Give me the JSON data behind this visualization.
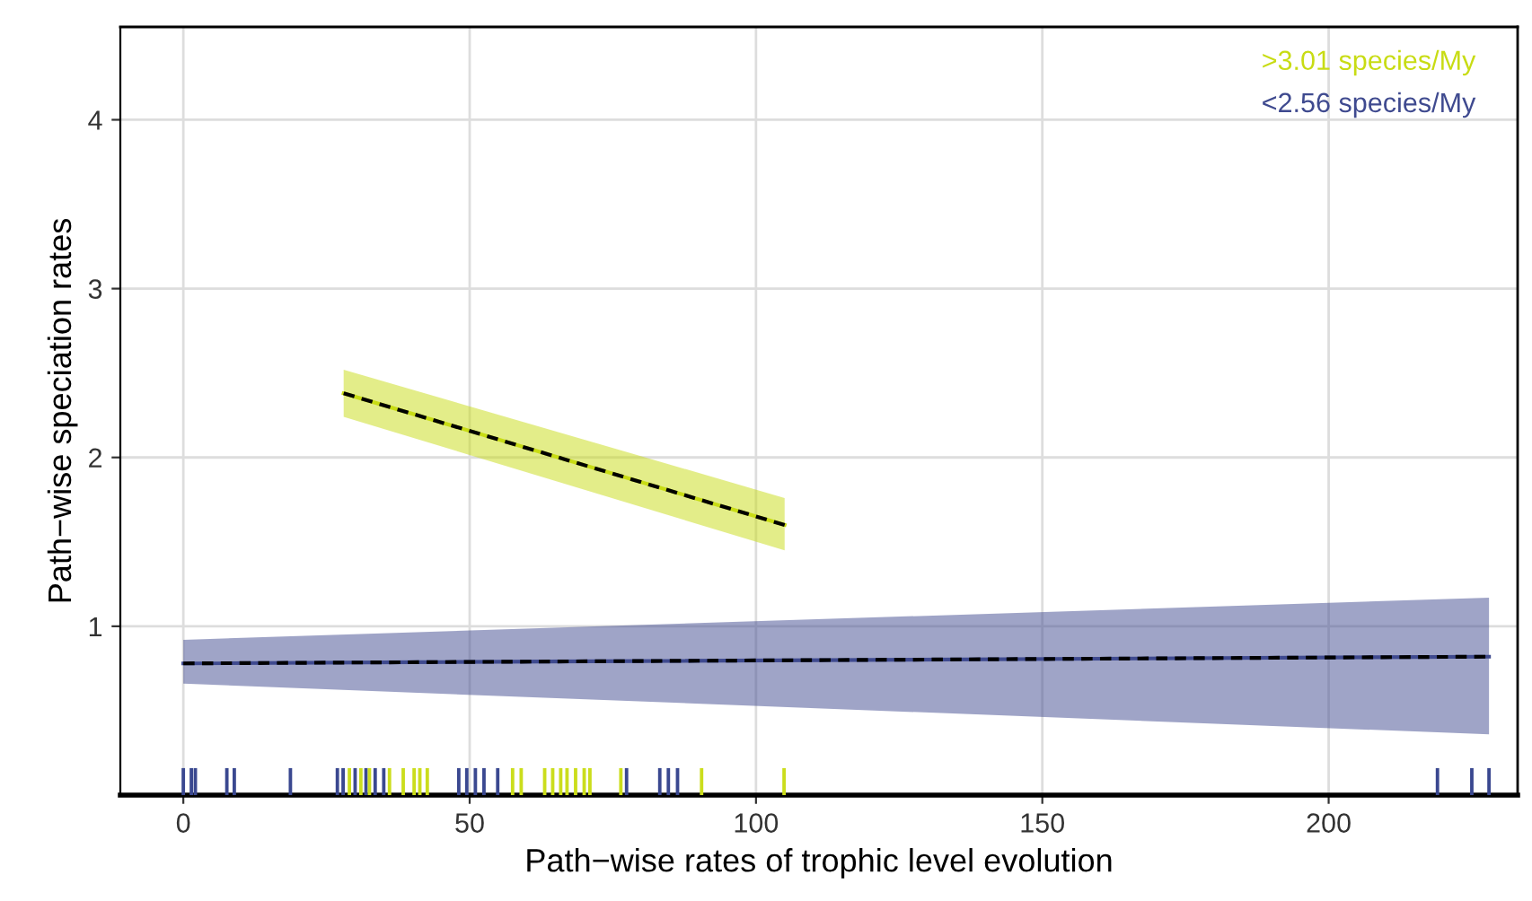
{
  "chart_data": {
    "type": "line",
    "xlabel": "Path−wise rates of trophic level evolution",
    "ylabel": "Path−wise speciation rates",
    "xlim": [
      -11,
      233
    ],
    "xticks": [
      0,
      50,
      100,
      150,
      200
    ],
    "ylim": [
      0,
      4.55
    ],
    "yticks": [
      1,
      2,
      3,
      4
    ],
    "grid": true,
    "legend": "top right",
    "series": [
      {
        "name": "<2.56 species/My",
        "color": "#3f4a8f",
        "x": [
          0,
          228
        ],
        "values": [
          0.78,
          0.82
        ],
        "lower": [
          0.66,
          0.36
        ],
        "upper": [
          0.92,
          1.17
        ]
      },
      {
        "color": "#000000",
        "line_style": "dashed",
        "x": [
          0,
          228
        ],
        "values": [
          0.78,
          0.82
        ]
      },
      {
        "name": ">3.01 species/My",
        "color": "#c8dc14",
        "x": [
          28,
          105
        ],
        "values": [
          2.38,
          1.6
        ],
        "lower": [
          2.24,
          1.45
        ],
        "upper": [
          2.52,
          1.76
        ]
      },
      {
        "color": "#000000",
        "line_style": "dashed",
        "x": [
          28,
          105
        ],
        "values": [
          2.38,
          1.6
        ]
      },
      {
        "type": "bar",
        "color": "#3a4890",
        "x": [
          0,
          1.4,
          2.1,
          7.6,
          8.9,
          18.7,
          26.9,
          27.9,
          30,
          31.9,
          33.5,
          35,
          48.1,
          49.5,
          51,
          52.5,
          54.9,
          77.4,
          83.2,
          84.7,
          86.3,
          219,
          225,
          228
        ],
        "values": [
          0.16,
          0.16,
          0.16,
          0.16,
          0.16,
          0.16,
          0.16,
          0.16,
          0.16,
          0.16,
          0.16,
          0.16,
          0.16,
          0.16,
          0.16,
          0.16,
          0.16,
          0.16,
          0.16,
          0.16,
          0.16,
          0.16,
          0.16,
          0.16
        ]
      },
      {
        "type": "bar",
        "color": "#cbdd1c",
        "x": [
          29,
          31,
          32.5,
          36,
          38.4,
          40.3,
          41.3,
          42.6,
          57.5,
          59,
          63.1,
          64.5,
          65.9,
          67,
          68.5,
          70,
          71,
          76.4,
          90.5,
          104.9
        ],
        "values": [
          0.16,
          0.16,
          0.16,
          0.16,
          0.16,
          0.16,
          0.16,
          0.16,
          0.16,
          0.16,
          0.16,
          0.16,
          0.16,
          0.16,
          0.16,
          0.16,
          0.16,
          0.16,
          0.16,
          0.16
        ]
      }
    ]
  }
}
